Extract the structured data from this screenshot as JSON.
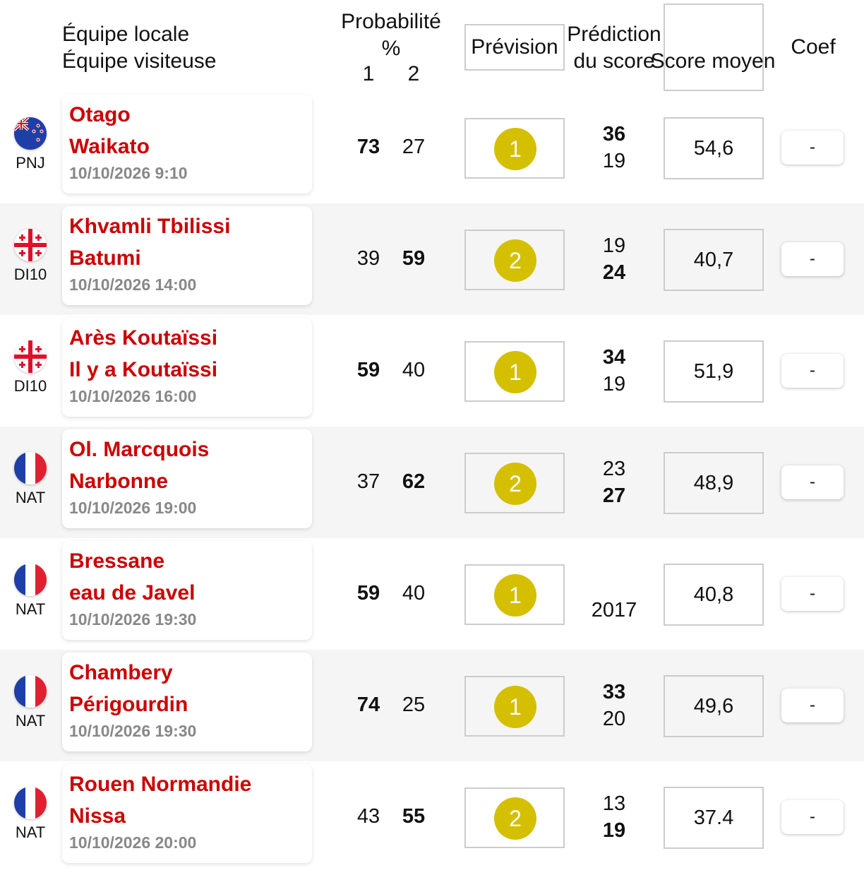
{
  "header": {
    "home": "Équipe locale",
    "away": "Équipe visiteuse",
    "prob": "Probabilité",
    "pct": "%",
    "one": "1",
    "two": "2",
    "forecast": "Prévision",
    "pred1": "Prédiction",
    "pred2": "du score",
    "avg": "Score moyen",
    "coef": "Coef"
  },
  "colors": {
    "team": "#cc0000",
    "ball": "#d4bf00",
    "alt_row": "#f5f5f5"
  },
  "rows": [
    {
      "flag": "new-zealand",
      "comp": "PNJ",
      "home": "Otago",
      "away": "Waikato",
      "date": "10/10/2026 9:10",
      "p1": "73",
      "p2": "27",
      "fav": "1",
      "s1": "36",
      "s2": "19",
      "avg": "54,6",
      "coef": "-"
    },
    {
      "flag": "georgia",
      "comp": "DI10",
      "home": "Khvamli Tbilissi",
      "away": "Batumi",
      "date": "10/10/2026 14:00",
      "p1": "39",
      "p2": "59",
      "fav": "2",
      "s1": "19",
      "s2": "24",
      "avg": "40,7",
      "coef": "-"
    },
    {
      "flag": "georgia",
      "comp": "DI10",
      "home": "Arès Koutaïssi",
      "away": "Il y a Koutaïssi",
      "date": "10/10/2026 16:00",
      "p1": "59",
      "p2": "40",
      "fav": "1",
      "s1": "34",
      "s2": "19",
      "avg": "51,9",
      "coef": "-"
    },
    {
      "flag": "france",
      "comp": "NAT",
      "home": "Ol. Marcquois",
      "away": "Narbonne",
      "date": "10/10/2026 19:00",
      "p1": "37",
      "p2": "62",
      "fav": "2",
      "s1": "23",
      "s2": "27",
      "avg": "48,9",
      "coef": "-"
    },
    {
      "flag": "france",
      "comp": "NAT",
      "home": "Bressane",
      "away": "eau de Javel",
      "date": "10/10/2026 19:30",
      "p1": "59",
      "p2": "40",
      "fav": "1",
      "s1": "",
      "s2": "2017",
      "avg": "40,8",
      "coef": "-"
    },
    {
      "flag": "france",
      "comp": "NAT",
      "home": "Chambery",
      "away": "Périgourdin",
      "date": "10/10/2026 19:30",
      "p1": "74",
      "p2": "25",
      "fav": "1",
      "s1": "33",
      "s2": "20",
      "avg": "49,6",
      "coef": "-"
    },
    {
      "flag": "france",
      "comp": "NAT",
      "home": "Rouen Normandie",
      "away": "Nissa",
      "date": "10/10/2026 20:00",
      "p1": "43",
      "p2": "55",
      "fav": "2",
      "s1": "13",
      "s2": "19",
      "avg": "37.4",
      "coef": "-"
    }
  ]
}
